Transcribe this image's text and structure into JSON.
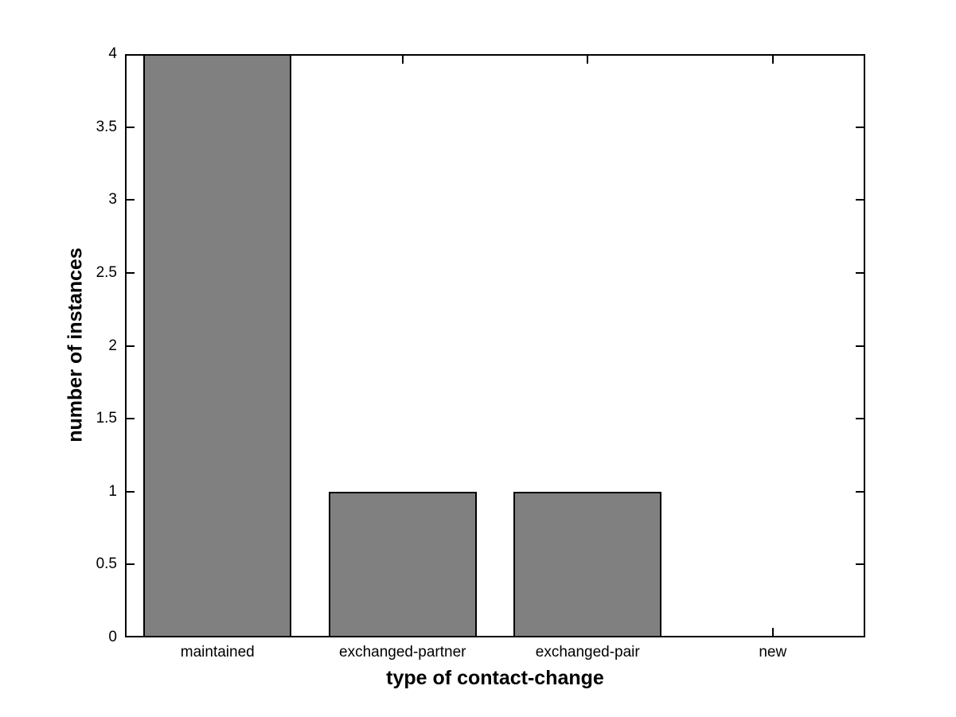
{
  "chart_data": {
    "type": "bar",
    "title": "",
    "xlabel": "type of contact-change",
    "ylabel": "number of instances",
    "categories": [
      "maintained",
      "exchanged-partner",
      "exchanged-pair",
      "new"
    ],
    "values": [
      4,
      1,
      1,
      0
    ],
    "ylim": [
      0,
      4
    ],
    "yticks": [
      0,
      0.5,
      1,
      1.5,
      2,
      2.5,
      3,
      3.5,
      4
    ],
    "ytick_labels": [
      "0",
      "0.5",
      "1",
      "1.5",
      "2",
      "2.5",
      "3",
      "3.5",
      "4"
    ],
    "bar_width_fraction": 0.8,
    "bar_color": "#808080",
    "bar_edge_color": "#000000",
    "axis_color": "#000000",
    "background_color": "#ffffff",
    "grid": false,
    "legend_position": "none"
  }
}
